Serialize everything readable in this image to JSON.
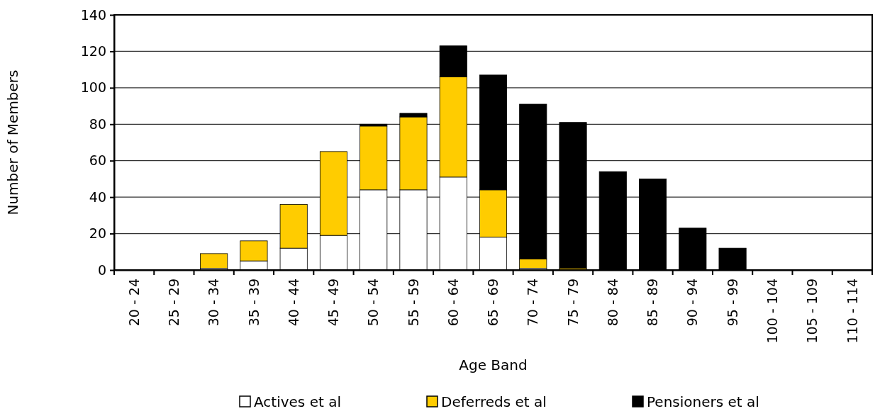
{
  "chart_data": {
    "type": "bar",
    "stacked": true,
    "xlabel": "Age Band",
    "ylabel": "Number of Members",
    "categories": [
      "20 - 24",
      "25 - 29",
      "30 - 34",
      "35 - 39",
      "40 - 44",
      "45 - 49",
      "50 - 54",
      "55 - 59",
      "60 - 64",
      "65 - 69",
      "70 - 74",
      "75 - 79",
      "80 - 84",
      "85 - 89",
      "90 - 94",
      "95 - 99",
      "100 - 104",
      "105 - 109",
      "110 - 114"
    ],
    "series": [
      {
        "name": "Actives et al",
        "color": "#ffffff",
        "values": [
          0,
          0,
          1,
          5,
          12,
          19,
          44,
          44,
          51,
          18,
          1,
          0,
          0,
          0,
          0,
          0,
          0,
          0,
          0
        ]
      },
      {
        "name": "Deferreds et al",
        "color": "#ffcc00",
        "values": [
          0,
          0,
          8,
          11,
          24,
          46,
          35,
          40,
          55,
          26,
          5,
          1,
          0,
          0,
          0,
          0,
          0,
          0,
          0
        ]
      },
      {
        "name": "Pensioners et al",
        "color": "#000000",
        "values": [
          0,
          0,
          0,
          0,
          0,
          0,
          1,
          2,
          17,
          63,
          85,
          80,
          54,
          50,
          23,
          12,
          0,
          0,
          0
        ]
      }
    ],
    "ylim": [
      0,
      140
    ],
    "yticks": [
      0,
      20,
      40,
      60,
      80,
      100,
      120,
      140
    ],
    "grid": "y",
    "legend": "bottom"
  }
}
